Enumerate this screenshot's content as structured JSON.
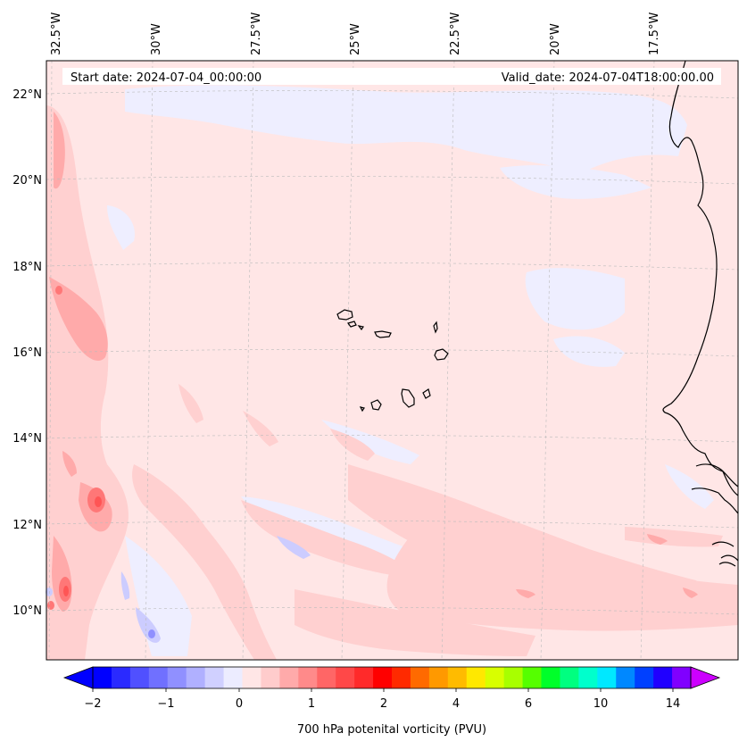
{
  "map": {
    "start_date_label": "Start date: 2024-07-04_00:00:00",
    "valid_date_label": "Valid_date: 2024-07-04T18:00:00.00",
    "lon_labels": [
      "32.5°W",
      "30°W",
      "27.5°W",
      "25°W",
      "22.5°W",
      "20°W",
      "17.5°W"
    ],
    "lat_labels": [
      "22°N",
      "20°N",
      "18°N",
      "16°N",
      "14°N",
      "12°N",
      "10°N"
    ],
    "colors": {
      "background": "#ffe6e6",
      "light_blue": "#eeeeff",
      "pink_1": "#ffd0d0",
      "pink_2": "#ffaaaa",
      "pink_3": "#ff7777",
      "blue_1": "#ccccff",
      "blue_2": "#aaaaff",
      "coast": "#000000"
    }
  },
  "colorbar": {
    "label": "700 hPa potenital vorticity (PVU)",
    "tick_labels": [
      "−2",
      "−1",
      "0",
      "1",
      "2",
      "4",
      "6",
      "10",
      "14"
    ],
    "colors": [
      "#0000ff",
      "#2a2aff",
      "#5050ff",
      "#7070ff",
      "#9090ff",
      "#b0b0ff",
      "#d0d0ff",
      "#ececff",
      "#ffe6e6",
      "#ffcccc",
      "#ffaaaa",
      "#ff8a8a",
      "#ff6666",
      "#ff4848",
      "#ff2a2a",
      "#ff0000",
      "#ff2a00",
      "#ff6a00",
      "#ff9900",
      "#ffbb00",
      "#ffe800",
      "#d8ff00",
      "#a8ff00",
      "#55ff00",
      "#00ff2a",
      "#00ff80",
      "#00ffcc",
      "#00e8ff",
      "#0088ff",
      "#0040ff",
      "#2000ff",
      "#8000ff"
    ],
    "extend_low_color": "#0000ff",
    "extend_high_color": "#cc00ff"
  }
}
